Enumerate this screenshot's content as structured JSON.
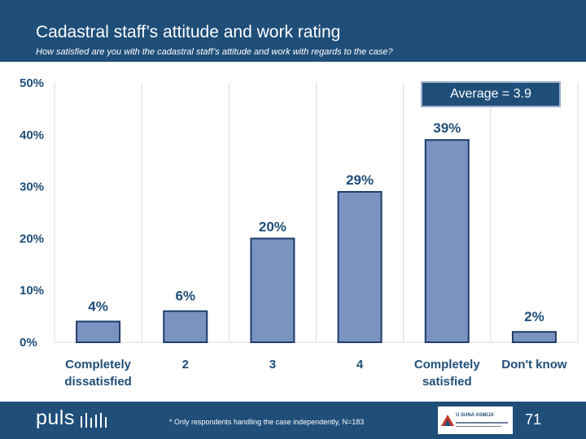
{
  "header": {
    "title": "Cadastral staff’s attitude and work rating",
    "subtitle": "How satisfied are you with the cadastral staff’s attitude and work with regards to the case?"
  },
  "average_label": "Average = 3.9",
  "chart_data": {
    "type": "bar",
    "categories": [
      [
        "Completely",
        "dissatisfied"
      ],
      [
        "2"
      ],
      [
        "3"
      ],
      [
        "4"
      ],
      [
        "Completely",
        "satisfied"
      ],
      [
        "Don't know"
      ]
    ],
    "values": [
      4,
      6,
      20,
      29,
      39,
      2
    ],
    "data_labels": [
      "4%",
      "6%",
      "20%",
      "29%",
      "39%",
      "2%"
    ],
    "y_ticks": [
      "0%",
      "10%",
      "20%",
      "30%",
      "40%",
      "50%"
    ],
    "ylim": [
      0,
      50
    ],
    "grid": "vertical separators",
    "bar_color": "#7b93c1",
    "bar_border": "#1f3d6b",
    "title": "",
    "xlabel": "",
    "ylabel": ""
  },
  "footer": {
    "logo": "puls",
    "footnote": "* Only respondents handling the case independently, N=183",
    "partner_logo_text": "U SUNA ASMIJA",
    "page_number": "71"
  },
  "colors": {
    "brand": "#1f4e79",
    "text": "#1f4e79"
  }
}
